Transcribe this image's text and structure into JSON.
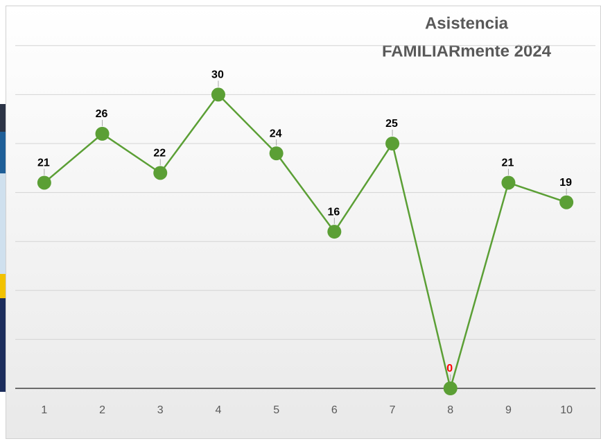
{
  "chart_data": {
    "type": "line",
    "title": [
      "Asistencia",
      "FAMILIARmente 2024"
    ],
    "categories": [
      "1",
      "2",
      "3",
      "4",
      "5",
      "6",
      "7",
      "8",
      "9",
      "10"
    ],
    "values": [
      21,
      26,
      22,
      30,
      24,
      16,
      25,
      0,
      21,
      19
    ],
    "color": "#5b9f35",
    "label_colors": [
      "#000000",
      "#000000",
      "#000000",
      "#000000",
      "#000000",
      "#000000",
      "#000000",
      "#ff0000",
      "#000000",
      "#000000"
    ],
    "ylim": [
      0,
      39
    ],
    "yticks": [
      0,
      5,
      10,
      15,
      20,
      25,
      30,
      35
    ],
    "grid": true
  }
}
